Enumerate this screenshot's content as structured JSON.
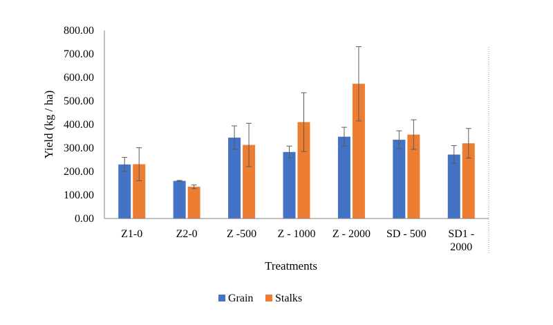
{
  "chart_data": {
    "type": "bar",
    "title": "",
    "xlabel": "Treatments",
    "ylabel": "Yield (kg / ha)",
    "ylim": [
      0,
      800
    ],
    "yticks": [
      "0.00",
      "100.00",
      "200.00",
      "300.00",
      "400.00",
      "500.00",
      "600.00",
      "700.00",
      "800.00"
    ],
    "categories": [
      "Z1-0",
      "Z2-0",
      "Z -500",
      "Z - 1000",
      "Z - 2000",
      "SD - 500",
      "SD1 - 2000"
    ],
    "series": [
      {
        "name": "Grain",
        "color": "#4472C4",
        "values": [
          230,
          160,
          344,
          283,
          348,
          335,
          272
        ],
        "errors": [
          30,
          2,
          50,
          25,
          40,
          38,
          38
        ]
      },
      {
        "name": "Stalks",
        "color": "#ED7D31",
        "values": [
          231,
          135,
          313,
          410,
          573,
          357,
          320
        ],
        "errors": [
          70,
          8,
          92,
          125,
          158,
          63,
          63
        ]
      }
    ],
    "grid": false,
    "legend_position": "bottom"
  }
}
